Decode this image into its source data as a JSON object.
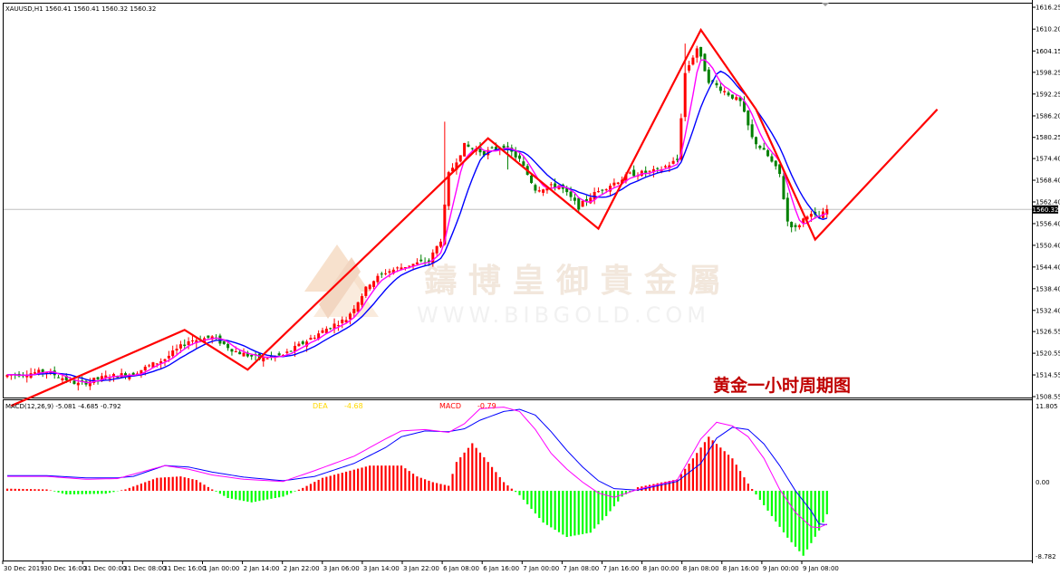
{
  "header": {
    "symbol_line": "XAUUSD,H1  1560.41 1560.41 1560.32 1560.32"
  },
  "watermark": {
    "chinese": "鑄 博 皇 御 貴 金 屬",
    "url": "WWW.BIBGOLD.COM"
  },
  "caption": "黄金一小时周期图",
  "macd_panel": {
    "label": "MACD(12,26,9) -5.081 -4.685 -0.792",
    "dea_text": "DEA",
    "dea_value": "-4.68",
    "macd_text": "MACD",
    "macd_value": "-0.79",
    "axis_top": "11.805",
    "axis_zero": "0.00",
    "axis_bottom": "-8.782"
  },
  "price_axis": {
    "current_price_label": "1560.32"
  },
  "colors": {
    "bull_candle": "#ff0000",
    "bear_candle": "#008000",
    "fast_ma": "#ff00ff",
    "slow_ma": "#0000ff",
    "trend_line": "#ff0000",
    "hist_pos": "#ff0000",
    "hist_neg": "#00ff00",
    "caption": "#c00000",
    "dea_label": "#ffd800",
    "macd_label": "#ff0000"
  },
  "chart_data": {
    "type": "candlestick",
    "title": "XAUUSD,H1",
    "timeframe": "H1",
    "y_range": [
      1508.55,
      1616.25
    ],
    "y_ticks": [
      "1616.25",
      "1610.20",
      "1604.15",
      "1598.25",
      "1592.25",
      "1586.20",
      "1580.25",
      "1574.40",
      "1568.40",
      "1562.40",
      "1556.40",
      "1550.40",
      "1544.40",
      "1538.40",
      "1532.40",
      "1526.55",
      "1520.55",
      "1514.55",
      "1508.55"
    ],
    "x_ticks": [
      "30 Dec 2019",
      "30 Dec 16:00",
      "31 Dec 00:00",
      "31 Dec 08:00",
      "31 Dec 16:00",
      "1 Jan 00:00",
      "2 Jan 14:00",
      "2 Jan 22:00",
      "3 Jan 06:00",
      "3 Jan 14:00",
      "3 Jan 22:00",
      "6 Jan 08:00",
      "6 Jan 16:00",
      "7 Jan 00:00",
      "7 Jan 08:00",
      "7 Jan 16:00",
      "8 Jan 00:00",
      "8 Jan 08:00",
      "8 Jan 16:00",
      "9 Jan 00:00",
      "9 Jan 08:00"
    ],
    "price_keypoints": [
      [
        0,
        1514.5
      ],
      [
        10,
        1515.5
      ],
      [
        18,
        1512
      ],
      [
        25,
        1514
      ],
      [
        32,
        1515
      ],
      [
        40,
        1519
      ],
      [
        46,
        1524
      ],
      [
        52,
        1525
      ],
      [
        58,
        1521
      ],
      [
        64,
        1519
      ],
      [
        70,
        1520
      ],
      [
        76,
        1524
      ],
      [
        82,
        1528
      ],
      [
        86,
        1530
      ],
      [
        92,
        1540
      ],
      [
        96,
        1543
      ],
      [
        102,
        1545
      ],
      [
        107,
        1546
      ],
      [
        110,
        1552
      ],
      [
        112,
        1570
      ],
      [
        116,
        1578
      ],
      [
        121,
        1576
      ],
      [
        126,
        1578
      ],
      [
        130,
        1574
      ],
      [
        134,
        1566
      ],
      [
        140,
        1567
      ],
      [
        145,
        1561
      ],
      [
        148,
        1564
      ],
      [
        151,
        1566
      ],
      [
        158,
        1570
      ],
      [
        165,
        1571
      ],
      [
        170,
        1574
      ],
      [
        172,
        1598
      ],
      [
        175,
        1605
      ],
      [
        178,
        1596
      ],
      [
        182,
        1593
      ],
      [
        186,
        1590
      ],
      [
        189,
        1580
      ],
      [
        193,
        1575
      ],
      [
        196,
        1570
      ],
      [
        198,
        1557
      ],
      [
        200,
        1555
      ],
      [
        203,
        1559
      ],
      [
        206,
        1558
      ],
      [
        208,
        1560.3
      ]
    ],
    "zigzag_trend": [
      [
        1,
        1506
      ],
      [
        45,
        1527
      ],
      [
        61,
        1516
      ],
      [
        122,
        1580
      ],
      [
        150,
        1555
      ],
      [
        176,
        1610
      ],
      [
        190,
        1588
      ],
      [
        205,
        1552
      ],
      [
        236,
        1588
      ]
    ],
    "last_price": 1560.32,
    "macd": {
      "y_range": [
        -8.782,
        11.805
      ],
      "hist_keypoints": [
        [
          0,
          0.3
        ],
        [
          10,
          0.2
        ],
        [
          15,
          -0.5
        ],
        [
          25,
          -0.4
        ],
        [
          30,
          0.2
        ],
        [
          38,
          1.8
        ],
        [
          44,
          2.0
        ],
        [
          48,
          1.5
        ],
        [
          52,
          0.2
        ],
        [
          56,
          -1.0
        ],
        [
          62,
          -1.6
        ],
        [
          70,
          -0.8
        ],
        [
          75,
          0.4
        ],
        [
          80,
          1.8
        ],
        [
          92,
          3.5
        ],
        [
          100,
          3.5
        ],
        [
          104,
          2.0
        ],
        [
          108,
          1.2
        ],
        [
          112,
          0.7
        ],
        [
          114,
          4.0
        ],
        [
          118,
          6.6
        ],
        [
          122,
          4.0
        ],
        [
          126,
          1.2
        ],
        [
          130,
          -0.6
        ],
        [
          136,
          -4.4
        ],
        [
          142,
          -6.4
        ],
        [
          148,
          -5.8
        ],
        [
          152,
          -3.5
        ],
        [
          156,
          -0.8
        ],
        [
          160,
          0.5
        ],
        [
          170,
          1.6
        ],
        [
          174,
          4.5
        ],
        [
          178,
          7.5
        ],
        [
          184,
          4.5
        ],
        [
          188,
          1.0
        ],
        [
          192,
          -2.0
        ],
        [
          198,
          -6.5
        ],
        [
          202,
          -9.0
        ],
        [
          206,
          -5.5
        ],
        [
          210,
          -1.0
        ]
      ],
      "macd_keypoints": [
        [
          0,
          2.0
        ],
        [
          10,
          2.0
        ],
        [
          20,
          1.6
        ],
        [
          28,
          1.7
        ],
        [
          32,
          2.3
        ],
        [
          40,
          3.5
        ],
        [
          46,
          3.0
        ],
        [
          52,
          2.2
        ],
        [
          60,
          1.6
        ],
        [
          70,
          1.3
        ],
        [
          78,
          2.8
        ],
        [
          88,
          4.8
        ],
        [
          96,
          7.2
        ],
        [
          100,
          8.3
        ],
        [
          106,
          8.5
        ],
        [
          112,
          8.1
        ],
        [
          116,
          9.3
        ],
        [
          120,
          11.4
        ],
        [
          126,
          11.6
        ],
        [
          130,
          11.0
        ],
        [
          134,
          8.5
        ],
        [
          138,
          5.2
        ],
        [
          142,
          3.0
        ],
        [
          146,
          1.2
        ],
        [
          150,
          -0.3
        ],
        [
          154,
          -0.9
        ],
        [
          160,
          0.2
        ],
        [
          170,
          1.5
        ],
        [
          176,
          7.2
        ],
        [
          180,
          9.5
        ],
        [
          184,
          9.0
        ],
        [
          188,
          7.5
        ],
        [
          192,
          4.5
        ],
        [
          196,
          0.2
        ],
        [
          200,
          -3.0
        ],
        [
          204,
          -5.0
        ],
        [
          206,
          -5.1
        ],
        [
          208,
          -4.6
        ]
      ],
      "signal_keypoints": [
        [
          0,
          2.1
        ],
        [
          10,
          2.1
        ],
        [
          20,
          1.8
        ],
        [
          28,
          1.8
        ],
        [
          32,
          2.0
        ],
        [
          40,
          3.5
        ],
        [
          46,
          3.3
        ],
        [
          52,
          2.6
        ],
        [
          60,
          1.9
        ],
        [
          70,
          1.4
        ],
        [
          78,
          2.0
        ],
        [
          88,
          3.8
        ],
        [
          96,
          6.0
        ],
        [
          100,
          7.5
        ],
        [
          106,
          8.3
        ],
        [
          112,
          8.2
        ],
        [
          116,
          8.6
        ],
        [
          120,
          9.8
        ],
        [
          126,
          11.0
        ],
        [
          130,
          11.3
        ],
        [
          134,
          10.5
        ],
        [
          138,
          8.2
        ],
        [
          142,
          5.6
        ],
        [
          146,
          3.3
        ],
        [
          150,
          1.4
        ],
        [
          154,
          0.3
        ],
        [
          160,
          0.1
        ],
        [
          170,
          1.3
        ],
        [
          176,
          3.8
        ],
        [
          180,
          7.3
        ],
        [
          184,
          8.8
        ],
        [
          188,
          8.5
        ],
        [
          192,
          6.5
        ],
        [
          196,
          3.5
        ],
        [
          200,
          0.0
        ],
        [
          204,
          -2.8
        ],
        [
          206,
          -4.6
        ],
        [
          208,
          -4.7
        ]
      ]
    }
  }
}
